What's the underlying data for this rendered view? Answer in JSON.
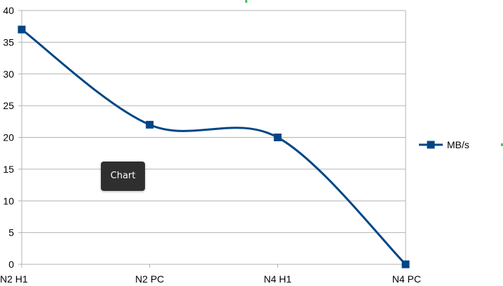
{
  "tooltip_text": "Chart",
  "colors": {
    "series": "#004586",
    "grid": "#b3b3b3",
    "axis": "#b3b3b3",
    "selection_marker": "#4cc36a"
  },
  "chart_data": {
    "type": "line",
    "smooth": true,
    "categories": [
      "N2 H1",
      "N2 PC",
      "N4 H1",
      "N4 PC"
    ],
    "series": [
      {
        "name": "MB/s",
        "values": [
          37,
          22,
          20,
          0
        ],
        "marker": "square"
      }
    ],
    "ylim": [
      0,
      40
    ],
    "yticks": [
      0,
      5,
      10,
      15,
      20,
      25,
      30,
      35,
      40
    ],
    "grid": true,
    "legend": "right"
  }
}
